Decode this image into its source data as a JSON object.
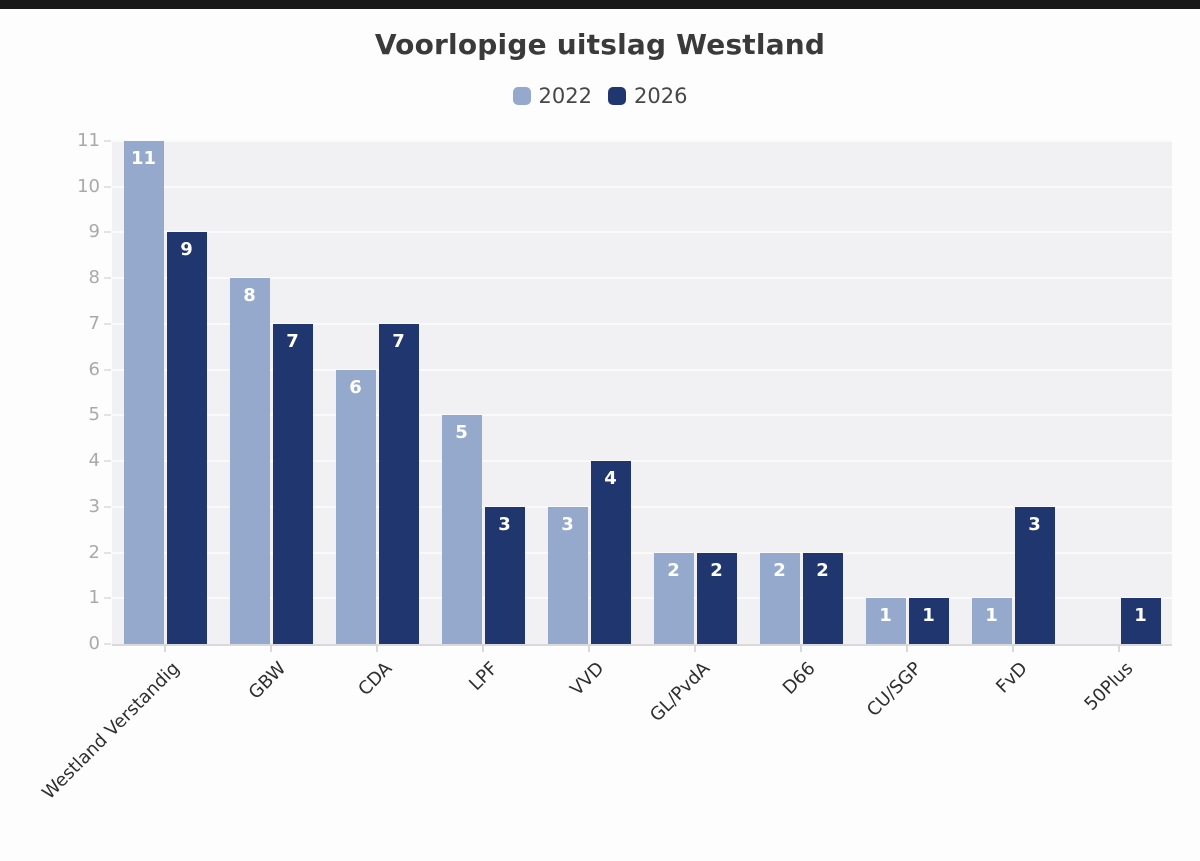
{
  "page": {
    "top_bar_color": "#181818",
    "background": "#fdfdfd"
  },
  "chart_data": {
    "type": "bar",
    "title": "Voorlopige uitslag Westland",
    "categories": [
      "Westland Verstandig",
      "GBW",
      "CDA",
      "LPF",
      "VVD",
      "GL/PvdA",
      "D66",
      "CU/SGP",
      "FvD",
      "50Plus"
    ],
    "series": [
      {
        "name": "2022",
        "color": "#94a9cb",
        "values": [
          11,
          8,
          6,
          5,
          3,
          2,
          2,
          1,
          1,
          null
        ]
      },
      {
        "name": "2026",
        "color": "#20366f",
        "values": [
          9,
          7,
          7,
          3,
          4,
          2,
          2,
          1,
          3,
          1
        ]
      }
    ],
    "xlabel": "",
    "ylabel": "",
    "ylim": [
      0,
      11
    ],
    "yticks": [
      0,
      1,
      2,
      3,
      4,
      5,
      6,
      7,
      8,
      9,
      10,
      11
    ],
    "grid": true,
    "legend_position": "top",
    "value_labels": "inside-top",
    "value_label_color": "#ffffff",
    "plot_background": "#f1f0f2",
    "axis_label_color": "#aba8ab",
    "category_label_color": "#2e2e2e"
  }
}
